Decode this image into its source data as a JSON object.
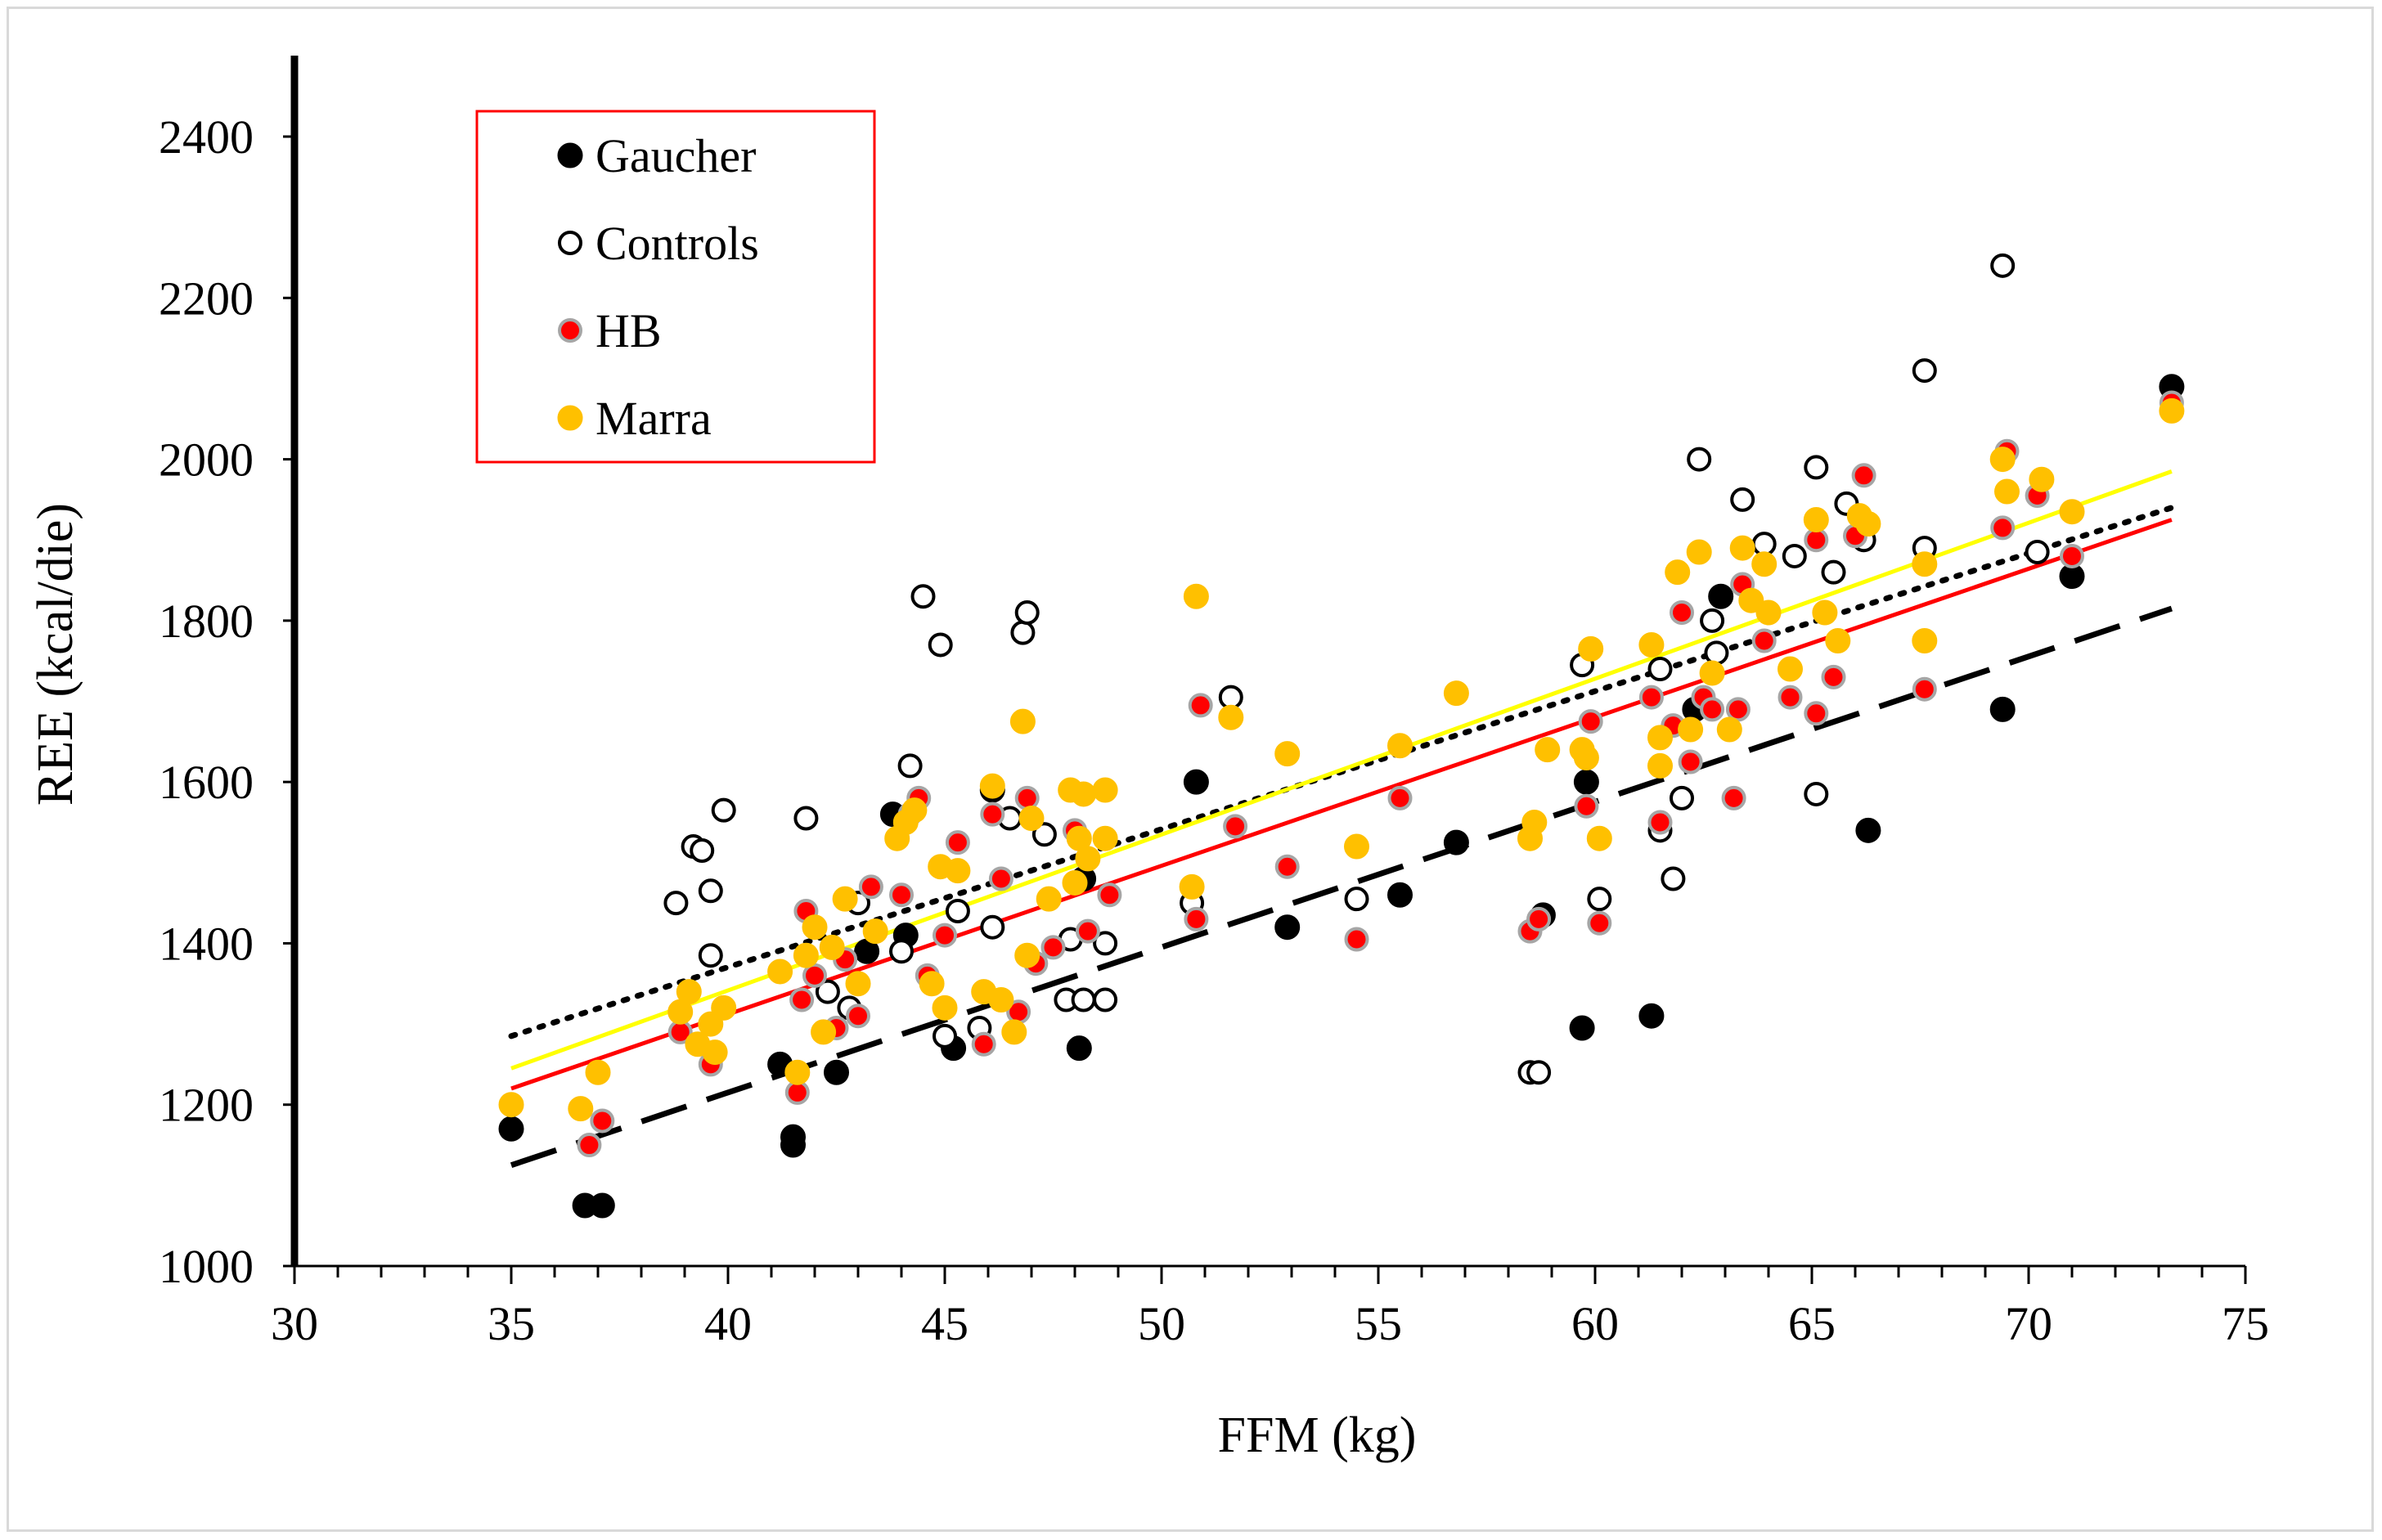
{
  "chart_data": {
    "type": "scatter",
    "title": "",
    "xlabel": "FFM (kg)",
    "ylabel": "REE (kcal/die)",
    "xlim": [
      30,
      75
    ],
    "ylim": [
      1000,
      2500
    ],
    "xticks": [
      30,
      35,
      40,
      45,
      50,
      55,
      60,
      65,
      70,
      75
    ],
    "yticks": [
      1000,
      1200,
      1400,
      1600,
      1800,
      2000,
      2200,
      2400
    ],
    "legend_position": "top-left",
    "series": [
      {
        "name": "Gaucher",
        "marker": "filled-circle",
        "color": "#000000",
        "points": [
          [
            35,
            1170
          ],
          [
            36.7,
            1075
          ],
          [
            37.1,
            1075
          ],
          [
            41.2,
            1250
          ],
          [
            41.5,
            1160
          ],
          [
            41.5,
            1150
          ],
          [
            42.5,
            1240
          ],
          [
            43.2,
            1390
          ],
          [
            43.8,
            1560
          ],
          [
            44.1,
            1410
          ],
          [
            45.2,
            1270
          ],
          [
            46.1,
            1590
          ],
          [
            48.1,
            1270
          ],
          [
            48.2,
            1480
          ],
          [
            50.8,
            1600
          ],
          [
            52.9,
            1420
          ],
          [
            55.5,
            1460
          ],
          [
            56.8,
            1525
          ],
          [
            58.8,
            1435
          ],
          [
            59.7,
            1295
          ],
          [
            59.8,
            1600
          ],
          [
            61.3,
            1310
          ],
          [
            62.3,
            1690
          ],
          [
            62.9,
            1830
          ],
          [
            66.3,
            1540
          ],
          [
            69.4,
            1690
          ],
          [
            71.0,
            1855
          ],
          [
            73.3,
            2090
          ]
        ]
      },
      {
        "name": "Controls",
        "marker": "open-circle",
        "color": "#000000",
        "points": [
          [
            38.8,
            1450
          ],
          [
            39.2,
            1520
          ],
          [
            39.4,
            1515
          ],
          [
            39.6,
            1465
          ],
          [
            39.6,
            1385
          ],
          [
            39.9,
            1565
          ],
          [
            41.8,
            1555
          ],
          [
            42.3,
            1340
          ],
          [
            42.8,
            1320
          ],
          [
            43.0,
            1450
          ],
          [
            44.0,
            1390
          ],
          [
            44.2,
            1620
          ],
          [
            44.5,
            1830
          ],
          [
            44.9,
            1770
          ],
          [
            45.0,
            1285
          ],
          [
            45.3,
            1440
          ],
          [
            45.8,
            1295
          ],
          [
            46.1,
            1420
          ],
          [
            46.5,
            1555
          ],
          [
            46.8,
            1785
          ],
          [
            46.9,
            1810
          ],
          [
            47.3,
            1535
          ],
          [
            47.8,
            1330
          ],
          [
            47.9,
            1405
          ],
          [
            48.2,
            1330
          ],
          [
            48.7,
            1330
          ],
          [
            48.7,
            1400
          ],
          [
            50.7,
            1450
          ],
          [
            51.6,
            1705
          ],
          [
            54.5,
            1455
          ],
          [
            58.5,
            1240
          ],
          [
            58.7,
            1240
          ],
          [
            59.7,
            1745
          ],
          [
            60.1,
            1455
          ],
          [
            61.5,
            1740
          ],
          [
            61.5,
            1540
          ],
          [
            61.8,
            1480
          ],
          [
            62.0,
            1580
          ],
          [
            62.4,
            2000
          ],
          [
            62.7,
            1800
          ],
          [
            62.8,
            1760
          ],
          [
            63.4,
            1950
          ],
          [
            63.9,
            1895
          ],
          [
            64.6,
            1880
          ],
          [
            65.1,
            1990
          ],
          [
            65.1,
            1585
          ],
          [
            65.5,
            1860
          ],
          [
            65.8,
            1945
          ],
          [
            66.2,
            1900
          ],
          [
            67.6,
            1890
          ],
          [
            67.6,
            2110
          ],
          [
            69.4,
            2240
          ],
          [
            70.2,
            1885
          ]
        ]
      },
      {
        "name": "HB",
        "marker": "red-circle-grey-edge",
        "color": "#ff0000",
        "points": [
          [
            36.8,
            1150
          ],
          [
            37.1,
            1180
          ],
          [
            38.9,
            1290
          ],
          [
            39.6,
            1250
          ],
          [
            41.6,
            1215
          ],
          [
            41.7,
            1330
          ],
          [
            41.8,
            1440
          ],
          [
            42.0,
            1360
          ],
          [
            42.5,
            1295
          ],
          [
            42.7,
            1380
          ],
          [
            43.0,
            1310
          ],
          [
            43.3,
            1470
          ],
          [
            44.0,
            1460
          ],
          [
            44.2,
            1560
          ],
          [
            44.4,
            1580
          ],
          [
            44.6,
            1360
          ],
          [
            45.0,
            1410
          ],
          [
            45.3,
            1525
          ],
          [
            45.9,
            1275
          ],
          [
            46.1,
            1560
          ],
          [
            46.3,
            1480
          ],
          [
            46.7,
            1315
          ],
          [
            46.9,
            1580
          ],
          [
            47.1,
            1375
          ],
          [
            47.5,
            1395
          ],
          [
            48.0,
            1540
          ],
          [
            48.3,
            1415
          ],
          [
            48.8,
            1460
          ],
          [
            50.8,
            1430
          ],
          [
            50.9,
            1695
          ],
          [
            51.7,
            1545
          ],
          [
            52.9,
            1495
          ],
          [
            54.5,
            1405
          ],
          [
            55.5,
            1580
          ],
          [
            58.5,
            1415
          ],
          [
            58.7,
            1430
          ],
          [
            59.8,
            1570
          ],
          [
            59.9,
            1675
          ],
          [
            60.1,
            1425
          ],
          [
            61.3,
            1705
          ],
          [
            61.5,
            1550
          ],
          [
            61.8,
            1670
          ],
          [
            62.0,
            1810
          ],
          [
            62.2,
            1625
          ],
          [
            62.5,
            1705
          ],
          [
            62.7,
            1690
          ],
          [
            63.2,
            1580
          ],
          [
            63.3,
            1690
          ],
          [
            63.4,
            1845
          ],
          [
            63.9,
            1775
          ],
          [
            64.5,
            1705
          ],
          [
            65.1,
            1685
          ],
          [
            65.1,
            1900
          ],
          [
            65.5,
            1730
          ],
          [
            66.0,
            1905
          ],
          [
            66.2,
            1980
          ],
          [
            67.6,
            1715
          ],
          [
            69.5,
            2010
          ],
          [
            69.4,
            1915
          ],
          [
            70.2,
            1955
          ],
          [
            71.0,
            1880
          ],
          [
            73.3,
            2070
          ]
        ]
      },
      {
        "name": "Marra",
        "marker": "filled-circle",
        "color": "#ffc000",
        "points": [
          [
            35,
            1200
          ],
          [
            36.6,
            1195
          ],
          [
            37.0,
            1240
          ],
          [
            38.9,
            1315
          ],
          [
            39.1,
            1340
          ],
          [
            39.3,
            1275
          ],
          [
            39.6,
            1300
          ],
          [
            39.7,
            1265
          ],
          [
            39.9,
            1320
          ],
          [
            41.2,
            1365
          ],
          [
            41.6,
            1240
          ],
          [
            41.8,
            1385
          ],
          [
            42.0,
            1420
          ],
          [
            42.2,
            1290
          ],
          [
            42.4,
            1395
          ],
          [
            42.7,
            1455
          ],
          [
            43.0,
            1350
          ],
          [
            43.4,
            1415
          ],
          [
            43.9,
            1530
          ],
          [
            44.1,
            1550
          ],
          [
            44.3,
            1565
          ],
          [
            44.7,
            1350
          ],
          [
            44.9,
            1495
          ],
          [
            45.0,
            1320
          ],
          [
            45.3,
            1490
          ],
          [
            45.9,
            1340
          ],
          [
            46.1,
            1595
          ],
          [
            46.3,
            1330
          ],
          [
            46.6,
            1290
          ],
          [
            46.8,
            1675
          ],
          [
            46.9,
            1385
          ],
          [
            47.0,
            1555
          ],
          [
            47.4,
            1455
          ],
          [
            47.9,
            1590
          ],
          [
            48.0,
            1475
          ],
          [
            48.1,
            1530
          ],
          [
            48.2,
            1585
          ],
          [
            48.3,
            1505
          ],
          [
            48.7,
            1530
          ],
          [
            48.7,
            1590
          ],
          [
            50.7,
            1470
          ],
          [
            50.8,
            1830
          ],
          [
            51.6,
            1680
          ],
          [
            52.9,
            1635
          ],
          [
            54.5,
            1520
          ],
          [
            55.5,
            1645
          ],
          [
            56.8,
            1710
          ],
          [
            58.5,
            1530
          ],
          [
            58.6,
            1550
          ],
          [
            58.9,
            1640
          ],
          [
            59.7,
            1640
          ],
          [
            59.8,
            1630
          ],
          [
            59.9,
            1765
          ],
          [
            60.1,
            1530
          ],
          [
            61.3,
            1770
          ],
          [
            61.5,
            1655
          ],
          [
            61.5,
            1620
          ],
          [
            61.9,
            1860
          ],
          [
            62.2,
            1665
          ],
          [
            62.4,
            1885
          ],
          [
            62.7,
            1735
          ],
          [
            63.1,
            1665
          ],
          [
            63.4,
            1890
          ],
          [
            63.6,
            1825
          ],
          [
            63.9,
            1870
          ],
          [
            64.0,
            1810
          ],
          [
            64.5,
            1740
          ],
          [
            65.1,
            1925
          ],
          [
            65.3,
            1810
          ],
          [
            65.6,
            1775
          ],
          [
            66.1,
            1930
          ],
          [
            66.3,
            1920
          ],
          [
            67.6,
            1775
          ],
          [
            67.6,
            1870
          ],
          [
            69.4,
            2000
          ],
          [
            69.5,
            1960
          ],
          [
            70.3,
            1975
          ],
          [
            71.0,
            1935
          ],
          [
            73.3,
            2060
          ]
        ]
      }
    ],
    "trendlines": [
      {
        "series": "Gaucher",
        "style": "long-dash",
        "color": "#000000",
        "from": [
          35,
          1125
        ],
        "to": [
          73.3,
          1815
        ]
      },
      {
        "series": "Controls",
        "style": "dotted",
        "color": "#000000",
        "from": [
          35,
          1285
        ],
        "to": [
          73.3,
          1940
        ]
      },
      {
        "series": "HB",
        "style": "solid",
        "color": "#ff0000",
        "from": [
          35,
          1220
        ],
        "to": [
          73.3,
          1925
        ]
      },
      {
        "series": "Marra",
        "style": "solid",
        "color": "#ffff00",
        "from": [
          35,
          1245
        ],
        "to": [
          73.3,
          1985
        ]
      }
    ]
  },
  "colors": {
    "legend_border": "#ff0000",
    "frame_border": "#d9d9d9",
    "hb_edge": "#a6a6a6"
  }
}
